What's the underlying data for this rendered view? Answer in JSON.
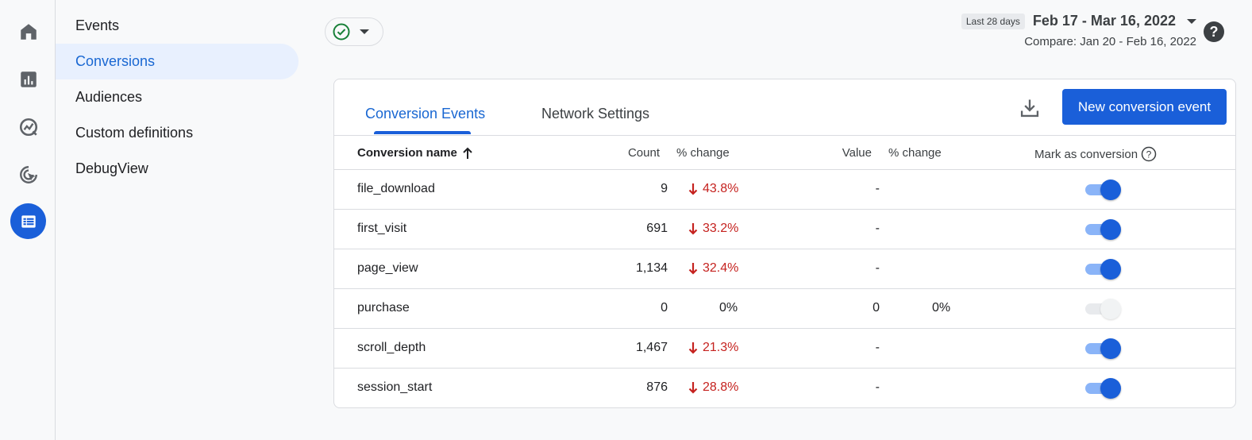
{
  "colors": {
    "accent": "#1a5fd9",
    "negative": "#c5221f",
    "nav_active_bg": "#e8f0fe"
  },
  "rail": {
    "icons": [
      "home-icon",
      "reports-icon",
      "explore-icon",
      "advertising-icon",
      "configure-icon"
    ]
  },
  "subnav": {
    "items": [
      {
        "label": "Events"
      },
      {
        "label": "Conversions"
      },
      {
        "label": "Audiences"
      },
      {
        "label": "Custom definitions"
      },
      {
        "label": "DebugView"
      }
    ]
  },
  "date": {
    "badge": "Last 28 days",
    "range": "Feb 17 - Mar 16, 2022",
    "compare": "Compare: Jan 20 - Feb 16, 2022"
  },
  "help": "?",
  "tabs": [
    {
      "label": "Conversion Events"
    },
    {
      "label": "Network Settings"
    }
  ],
  "actions": {
    "new_conversion": "New conversion event"
  },
  "table": {
    "headers": {
      "name": "Conversion name",
      "count": "Count",
      "count_change": "% change",
      "value": "Value",
      "value_change": "% change",
      "mark": "Mark as conversion"
    },
    "rows": [
      {
        "name": "file_download",
        "count": "9",
        "count_change": "43.8%",
        "value": "-",
        "value_change": "",
        "enabled": true
      },
      {
        "name": "first_visit",
        "count": "691",
        "count_change": "33.2%",
        "value": "-",
        "value_change": "",
        "enabled": true
      },
      {
        "name": "page_view",
        "count": "1,134",
        "count_change": "32.4%",
        "value": "-",
        "value_change": "",
        "enabled": true
      },
      {
        "name": "purchase",
        "count": "0",
        "count_change": "0%",
        "value": "0",
        "value_change": "0%",
        "enabled": false
      },
      {
        "name": "scroll_depth",
        "count": "1,467",
        "count_change": "21.3%",
        "value": "-",
        "value_change": "",
        "enabled": true
      },
      {
        "name": "session_start",
        "count": "876",
        "count_change": "28.8%",
        "value": "-",
        "value_change": "",
        "enabled": true
      }
    ]
  }
}
